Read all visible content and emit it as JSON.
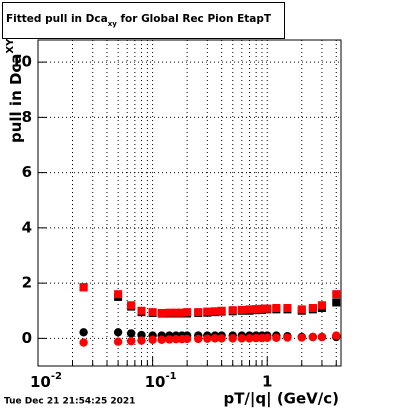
{
  "chart_data": {
    "type": "scatter",
    "title": {
      "main": "Fitted pull in Dca",
      "sub": "xy",
      "rest": " for Global Rec Pion EtapT"
    },
    "x_label": "pT/|q| (GeV/c)",
    "y_label": {
      "main": "pull in Dca",
      "sub": "XY"
    },
    "timestamp": "Tue Dec 21 21:54:25 2021",
    "x_log": true,
    "xlim": [
      0.01,
      4.4
    ],
    "ylim": [
      -1,
      10.8
    ],
    "xticks": [
      {
        "value": 0.01,
        "label": "10",
        "power": "-2"
      },
      {
        "value": 0.1,
        "label": "10",
        "power": "-1"
      },
      1
    ],
    "xminor": [
      0.02,
      0.03,
      0.04,
      0.05,
      0.06,
      0.07,
      0.08,
      0.09,
      0.2,
      0.3,
      0.4,
      0.5,
      0.6,
      0.7,
      0.8,
      0.9,
      2,
      3,
      4
    ],
    "yticks": [
      0,
      2,
      4,
      6,
      8,
      10
    ],
    "grid": true,
    "x": [
      0.025,
      0.05,
      0.065,
      0.08,
      0.1,
      0.12,
      0.14,
      0.16,
      0.18,
      0.2,
      0.25,
      0.3,
      0.35,
      0.4,
      0.5,
      0.6,
      0.7,
      0.8,
      0.9,
      1.0,
      1.2,
      1.5,
      2,
      2.5,
      3,
      4
    ],
    "series": [
      {
        "marker": "square",
        "color": "#000000",
        "values": [
          1.85,
          1.5,
          1.15,
          0.95,
          0.92,
          0.9,
          0.9,
          0.9,
          0.9,
          0.9,
          0.92,
          0.93,
          0.95,
          0.97,
          0.98,
          1.0,
          1.0,
          1.02,
          1.03,
          1.05,
          1.05,
          1.05,
          1.0,
          1.05,
          1.1,
          1.3
        ]
      },
      {
        "marker": "square",
        "color": "#ff0000",
        "values": [
          1.85,
          1.6,
          1.2,
          1.0,
          0.95,
          0.92,
          0.93,
          0.93,
          0.93,
          0.95,
          0.95,
          0.97,
          0.98,
          1.0,
          1.02,
          1.03,
          1.05,
          1.06,
          1.07,
          1.08,
          1.1,
          1.1,
          1.05,
          1.1,
          1.2,
          1.6
        ]
      },
      {
        "marker": "circle",
        "color": "#000000",
        "values": [
          0.22,
          0.22,
          0.18,
          0.12,
          0.1,
          0.1,
          0.1,
          0.1,
          0.1,
          0.1,
          0.1,
          0.1,
          0.1,
          0.1,
          0.1,
          0.1,
          0.1,
          0.1,
          0.1,
          0.1,
          0.1,
          0.08,
          0.05,
          0.05,
          0.05,
          0.05
        ]
      },
      {
        "marker": "circle",
        "color": "#ff0000",
        "values": [
          -0.15,
          -0.12,
          -0.1,
          -0.08,
          -0.05,
          -0.05,
          -0.04,
          -0.03,
          -0.03,
          -0.02,
          -0.02,
          -0.01,
          0,
          0,
          0,
          0,
          0,
          0.01,
          0.01,
          0.02,
          0.02,
          0.03,
          0.03,
          0.05,
          0.05,
          0.1
        ]
      }
    ]
  }
}
